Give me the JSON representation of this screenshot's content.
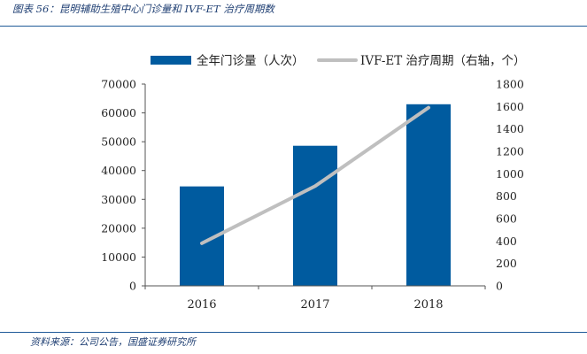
{
  "caption": "图表 56：昆明辅助生殖中心门诊量和 IVF-ET 治疗周期数",
  "source": "资料来源：公司公告，国盛证券研究所",
  "chart_data": {
    "type": "bar",
    "categories": [
      "2016",
      "2017",
      "2018"
    ],
    "series": [
      {
        "name": "全年门诊量（人次）",
        "kind": "bar",
        "axis": "left",
        "color": "#005b9f",
        "values": [
          34500,
          48600,
          63000
        ]
      },
      {
        "name": "IVF-ET 治疗周期（右轴，个）",
        "kind": "line",
        "axis": "right",
        "color": "#bfbfbf",
        "values": [
          380,
          890,
          1590
        ]
      }
    ],
    "y_left": {
      "ylim": [
        0,
        70000
      ],
      "ticks": [
        0,
        10000,
        20000,
        30000,
        40000,
        50000,
        60000,
        70000
      ],
      "tick_labels": [
        "0",
        "10000",
        "20000",
        "30000",
        "40000",
        "50000",
        "60000",
        "70000"
      ]
    },
    "y_right": {
      "ylim": [
        0,
        1800
      ],
      "ticks": [
        0,
        200,
        400,
        600,
        800,
        1000,
        1200,
        1400,
        1600,
        1800
      ],
      "tick_labels": [
        "0",
        "200",
        "400",
        "600",
        "800",
        "1000",
        "1200",
        "1400",
        "1600",
        "1800"
      ]
    },
    "legend_position": "top",
    "grid": false
  }
}
